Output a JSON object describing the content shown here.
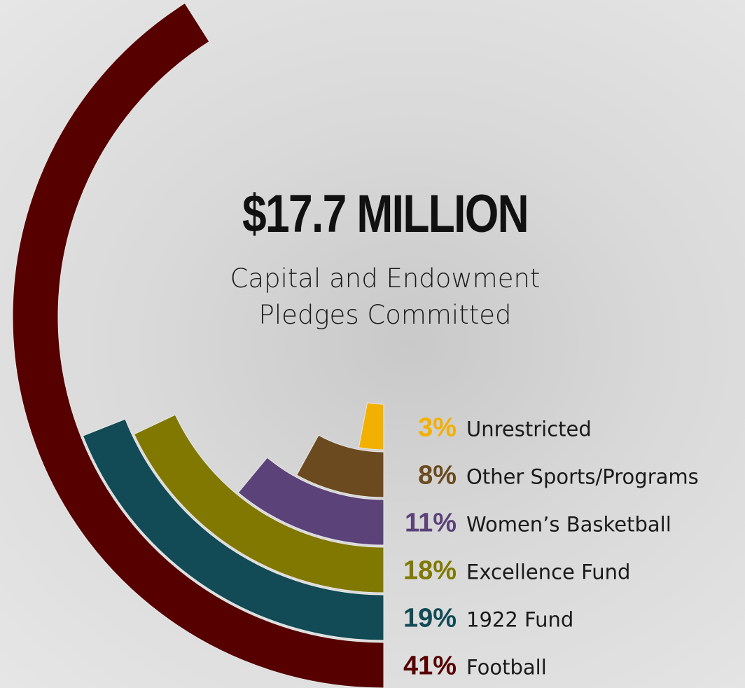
{
  "chart_data": {
    "type": "radial_bar",
    "title": "$17.7 MILLION",
    "subtitle": "Capital and Endowment Pledges Committed",
    "series": [
      {
        "name": "Unrestricted",
        "color": "#f2b000",
        "values": [
          3
        ],
        "value_labels": [
          "3%"
        ]
      },
      {
        "name": "Other Sports/Programs",
        "color": "#6b4a20",
        "values": [
          8
        ],
        "value_labels": [
          "8%"
        ]
      },
      {
        "name": "Women’s Basketball",
        "color": "#5b4278",
        "values": [
          11
        ],
        "value_labels": [
          "11%"
        ]
      },
      {
        "name": "Excellence Fund",
        "color": "#807800",
        "values": [
          18
        ],
        "value_labels": [
          "18%"
        ]
      },
      {
        "name": "1922 Fund",
        "color": "#124a55",
        "values": [
          19
        ],
        "value_labels": [
          "19%"
        ]
      },
      {
        "name": "Football",
        "color": "#560000",
        "values": [
          41
        ],
        "value_labels": [
          "41%"
        ]
      }
    ]
  }
}
